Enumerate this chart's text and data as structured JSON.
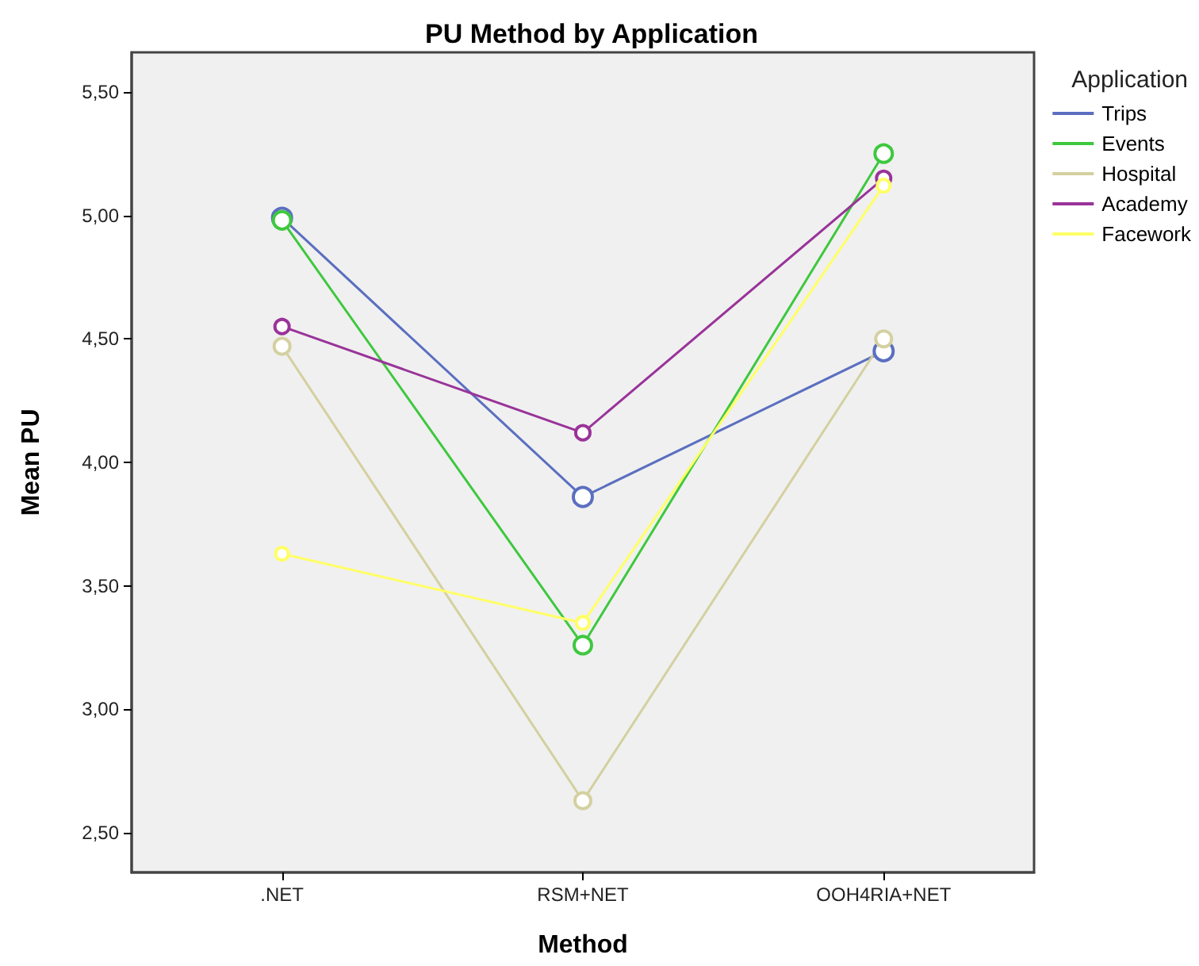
{
  "chart_data": {
    "type": "line",
    "title": "PU Method by Application",
    "xlabel": "Method",
    "ylabel": "Mean PU",
    "legend_title": "Application",
    "categories": [
      ".NET",
      "RSM+NET",
      "OOH4RIA+NET"
    ],
    "series": [
      {
        "name": "Trips",
        "color": "#5b6fc0",
        "values": [
          4.99,
          3.86,
          4.45
        ]
      },
      {
        "name": "Events",
        "color": "#3ec83e",
        "values": [
          4.98,
          3.26,
          5.25
        ]
      },
      {
        "name": "Hospital",
        "color": "#d4d0a0",
        "values": [
          4.47,
          2.63,
          4.5
        ]
      },
      {
        "name": "Academy",
        "color": "#993399",
        "values": [
          4.55,
          4.12,
          5.15
        ]
      },
      {
        "name": "Facework",
        "color": "#ffff66",
        "values": [
          3.63,
          3.35,
          5.12
        ]
      }
    ],
    "ylim": [
      2.34,
      5.66
    ],
    "yticks": [
      {
        "value": 2.5,
        "label": "2,50"
      },
      {
        "value": 3,
        "label": "3,00"
      },
      {
        "value": 3.5,
        "label": "3,50"
      },
      {
        "value": 4,
        "label": "4,00"
      },
      {
        "value": 4.5,
        "label": "4,50"
      },
      {
        "value": 5,
        "label": "5,00"
      },
      {
        "value": 5.5,
        "label": "5,50"
      }
    ],
    "grid": false,
    "legend": "right",
    "marker": "circle",
    "line_style": "solid"
  }
}
